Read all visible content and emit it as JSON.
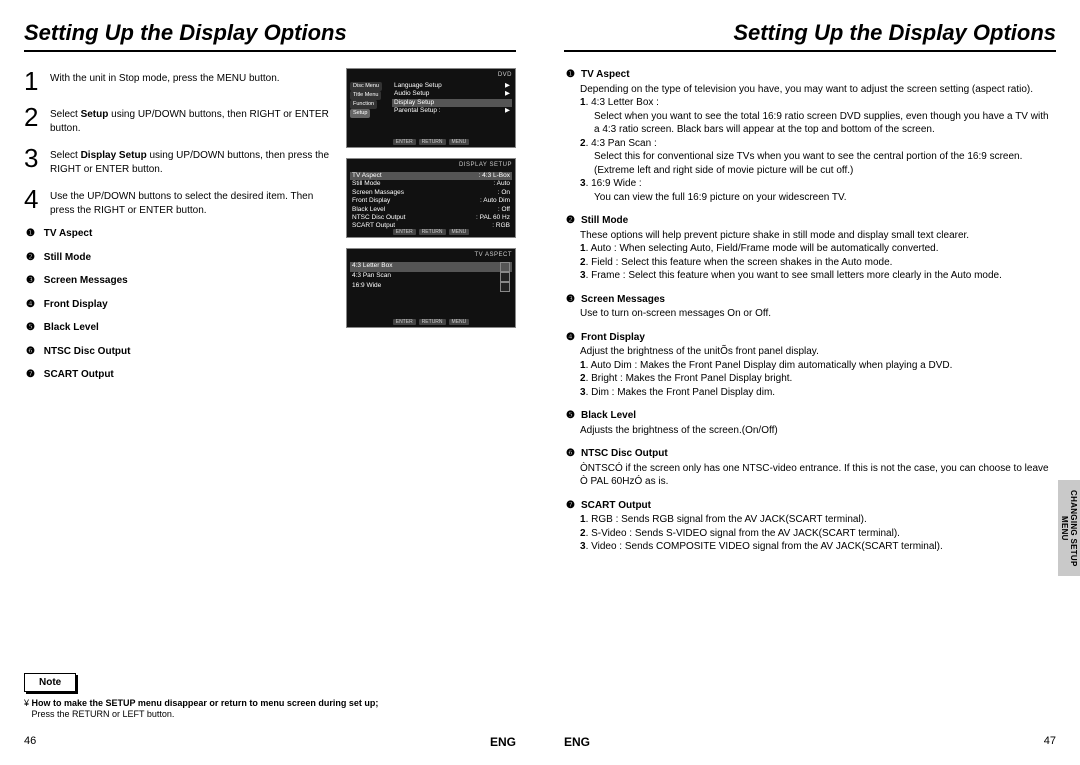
{
  "title": "Setting Up the Display Options",
  "steps": [
    {
      "n": "1",
      "t": "With the unit in Stop mode, press the MENU button."
    },
    {
      "n": "2",
      "t_pre": "Select ",
      "t_bold": "Setup",
      "t_post": " using UP/DOWN buttons, then RIGHT or ENTER button."
    },
    {
      "n": "3",
      "t_pre": "Select ",
      "t_bold": "Display Setup",
      "t_post": " using UP/DOWN buttons, then press the RIGHT or ENTER button."
    },
    {
      "n": "4",
      "t": "Use the UP/DOWN buttons to select the desired item. Then press the RIGHT or ENTER button."
    }
  ],
  "opts": [
    "TV Aspect",
    "Still Mode",
    "Screen Messages",
    "Front Display",
    "Black Level",
    "NTSC Disc Output",
    "SCART Output"
  ],
  "circled": [
    "❶",
    "❷",
    "❸",
    "❹",
    "❺",
    "❻",
    "❼"
  ],
  "osd1": {
    "hdr": "DVD",
    "sides": [
      "Disc Menu",
      "Title Menu",
      "Function"
    ],
    "rows": [
      {
        "l": "Language Setup",
        "r": "▶"
      },
      {
        "l": "Audio Setup",
        "r": "▶"
      },
      {
        "l": "Display Setup",
        "r": "",
        "hl": true
      },
      {
        "l": "Parental Setup :",
        "r": "▶"
      }
    ],
    "side_hl": "Setup",
    "btns": [
      "ENTER",
      "RETURN",
      "MENU"
    ]
  },
  "osd2": {
    "hdr": "DISPLAY SETUP",
    "rows": [
      {
        "l": "TV Aspect",
        "r": ": 4:3 L-Box",
        "hl": true
      },
      {
        "l": "Still Mode",
        "r": ": Auto"
      },
      {
        "l": "Screen Massages",
        "r": ": On"
      },
      {
        "l": "Front Display",
        "r": ": Auto Dim"
      },
      {
        "l": "Black Level",
        "r": ": Off"
      },
      {
        "l": "NTSC Disc Output",
        "r": ": PAL 60 Hz"
      },
      {
        "l": "SCART Output",
        "r": ": RGB"
      }
    ],
    "btns": [
      "ENTER",
      "RETURN",
      "MENU"
    ]
  },
  "osd3": {
    "hdr": "TV ASPECT",
    "rows": [
      {
        "l": "4:3 Letter Box",
        "sel": true
      },
      {
        "l": "4:3 Pan Scan"
      },
      {
        "l": "16:9 Wide"
      }
    ],
    "btns": [
      "ENTER",
      "RETURN",
      "MENU"
    ]
  },
  "note": {
    "label": "Note",
    "q": "How to make the SETUP menu disappear or return to menu screen during set up;",
    "a": "Press the RETURN or LEFT button."
  },
  "pn_left": "46",
  "pn_right": "47",
  "lang": "ENG",
  "tab": "CHANGING\nSETUP MENU",
  "right_secs": [
    {
      "c": "❶",
      "h": "TV Aspect",
      "body": [
        {
          "t": "Depending on the type of television you have, you may want to adjust the screen setting (aspect ratio)."
        },
        {
          "b": "1",
          "bt": ". 4:3 Letter Box :"
        },
        {
          "i": "Select when you want to see the total 16:9 ratio screen DVD supplies, even though you have a TV with a 4:3 ratio screen. Black bars will appear at the top and bottom of the screen."
        },
        {
          "b": "2",
          "bt": ". 4:3 Pan Scan :"
        },
        {
          "i": "Select this for conventional size TVs when you want to see the central portion of the 16:9 screen. (Extreme left and right side of movie picture will be cut off.)"
        },
        {
          "b": "3",
          "bt": ". 16:9 Wide :"
        },
        {
          "i": "You can view the full 16:9 picture on your widescreen TV."
        }
      ]
    },
    {
      "c": "❷",
      "h": "Still Mode",
      "body": [
        {
          "t": "These options will help prevent picture shake in still mode and display small text clearer."
        },
        {
          "b": "1",
          "bt": ". Auto : When selecting Auto, Field/Frame mode will be automatically converted."
        },
        {
          "b": "2",
          "bt": ". Field : Select this feature when the screen shakes in the Auto mode."
        },
        {
          "b": "3",
          "bt": ". Frame : Select this feature when you want to see small letters more clearly in the Auto mode."
        }
      ]
    },
    {
      "c": "❸",
      "h": "Screen Messages",
      "body": [
        {
          "t": "Use to turn on-screen messages On or Off."
        }
      ]
    },
    {
      "c": "❹",
      "h": "Front Display",
      "body": [
        {
          "t": "Adjust the brightness of the unitÕs front panel display."
        },
        {
          "b": "1",
          "bt": ". Auto Dim : Makes the Front Panel Display dim automatically when playing a DVD."
        },
        {
          "b": "2",
          "bt": ". Bright : Makes the Front Panel Display bright."
        },
        {
          "b": "3",
          "bt": ". Dim : Makes the Front Panel Display dim."
        }
      ]
    },
    {
      "c": "❺",
      "h": "Black Level",
      "body": [
        {
          "t": "Adjusts the brightness of the screen.(On/Off)"
        }
      ]
    },
    {
      "c": "❻",
      "h": "NTSC Disc Output",
      "body": [
        {
          "t": "ÒNTSCÓ if the screen only has one NTSC-video entrance. If this is not the case, you can choose to leave Ò PAL 60HzÓ as is."
        }
      ]
    },
    {
      "c": "❼",
      "h": "SCART Output",
      "body": [
        {
          "b": "1",
          "bt": ". RGB : Sends RGB signal from the AV JACK(SCART terminal)."
        },
        {
          "b": "2",
          "bt": ". S-Video : Sends S-VIDEO signal from the AV JACK(SCART terminal)."
        },
        {
          "b": "3",
          "bt": ". Video : Sends COMPOSITE VIDEO signal from the AV JACK(SCART terminal)."
        }
      ]
    }
  ]
}
